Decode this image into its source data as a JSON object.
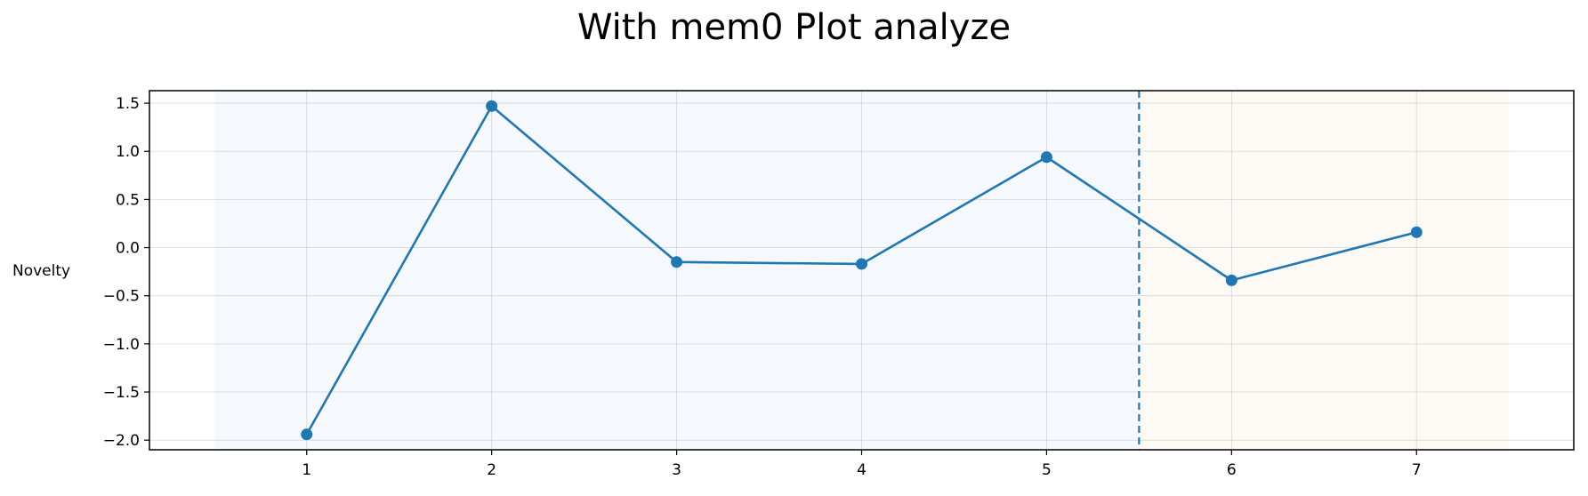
{
  "chart_data": {
    "type": "line",
    "title": "With mem0 Plot analyze",
    "xlabel": "",
    "ylabel": "Novelty",
    "x": [
      1,
      2,
      3,
      4,
      5,
      6,
      7
    ],
    "series": [
      {
        "values": [
          -1.94,
          1.47,
          -0.15,
          -0.17,
          0.94,
          -0.34,
          0.16
        ],
        "color": "#1f77b4"
      }
    ],
    "xlim": [
      0.15,
      7.85
    ],
    "ylim": [
      -2.1,
      1.63
    ],
    "xticks": [
      1,
      2,
      3,
      4,
      5,
      6,
      7
    ],
    "yticks": [
      1.5,
      1.0,
      0.5,
      0.0,
      -0.5,
      -1.0,
      -1.5,
      -2.0
    ],
    "ytick_labels": [
      "1.5",
      "1.0",
      "0.5",
      "0.0",
      "−0.5",
      "−1.0",
      "−1.5",
      "−2.0"
    ],
    "shaded_regions": [
      {
        "x_start": 0.5,
        "x_end": 5.5,
        "color": "#f5f8fc"
      },
      {
        "x_start": 5.5,
        "x_end": 7.5,
        "color": "#fdf9f4"
      }
    ],
    "vertical_line": {
      "x": 5.5,
      "style": "dashed",
      "color": "#1f77b4"
    },
    "grid": true
  }
}
